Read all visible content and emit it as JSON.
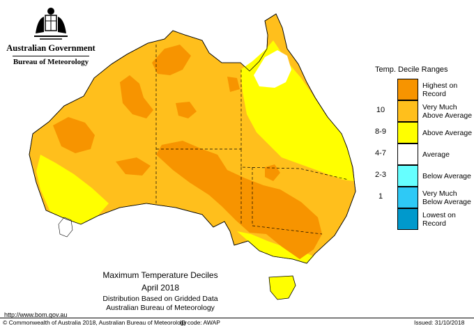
{
  "header": {
    "org_primary": "Australian Government",
    "org_secondary": "Bureau of Meteorology"
  },
  "map": {
    "title": "Maximum Temperature Deciles",
    "period": "April 2018",
    "subtitle": "Distribution Based on Gridded Data",
    "source": "Australian Bureau of Meteorology"
  },
  "legend": {
    "title": "Temp. Decile Ranges",
    "items": [
      {
        "range": "",
        "label": "Highest on Record",
        "color": "#f79400"
      },
      {
        "range": "10",
        "label": "Very Much Above Average",
        "color": "#ffbf1c"
      },
      {
        "range": "8-9",
        "label": "Above Average",
        "color": "#ffff00"
      },
      {
        "range": "4-7",
        "label": "Average",
        "color": "#ffffff"
      },
      {
        "range": "2-3",
        "label": "Below Average",
        "color": "#66ffff"
      },
      {
        "range": "1",
        "label": "Very Much Below Average",
        "color": "#2ec9f6"
      },
      {
        "range": "",
        "label": "Lowest on Record",
        "color": "#0099cc"
      }
    ]
  },
  "footer": {
    "url": "http://www.bom.gov.au",
    "copyright": "© Commonwealth of Australia 2018, Australian Bureau of Meteorology",
    "id_code": "ID code: AWAP",
    "issued": "Issued: 31/10/2018"
  }
}
